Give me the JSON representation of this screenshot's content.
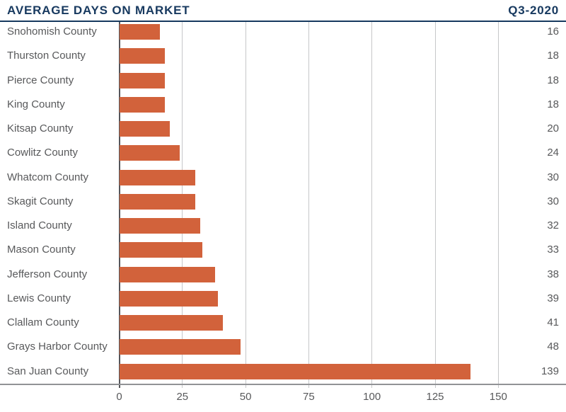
{
  "header": {
    "title": "AVERAGE DAYS ON MARKET",
    "period": "Q3-2020"
  },
  "colors": {
    "navy": "#17395F",
    "bar_orange": "#D2623B",
    "label_gray": "#58595B",
    "gridline_gray": "#C6C7C9",
    "axis_gray": "#919396",
    "zero_line_gray": "#55565A"
  },
  "chart_data": {
    "type": "bar",
    "orientation": "horizontal",
    "title": "AVERAGE DAYS ON MARKET",
    "subtitle": "Q3-2020",
    "categories": [
      "Snohomish County",
      "Thurston County",
      "Pierce County",
      "King County",
      "Kitsap County",
      "Cowlitz County",
      "Whatcom County",
      "Skagit County",
      "Island County",
      "Mason County",
      "Jefferson County",
      "Lewis County",
      "Clallam County",
      "Grays Harbor County",
      "San Juan County"
    ],
    "values": [
      16,
      18,
      18,
      18,
      20,
      24,
      30,
      30,
      32,
      33,
      38,
      39,
      41,
      48,
      139
    ],
    "value_labels": [
      "16",
      "18",
      "18",
      "18",
      "20",
      "24",
      "30",
      "30",
      "32",
      "33",
      "38",
      "39",
      "41",
      "48",
      "139"
    ],
    "xlabel": "",
    "ylabel": "",
    "xlim": [
      0,
      174
    ],
    "x_ticks": [
      0,
      25,
      50,
      75,
      100,
      125,
      150
    ],
    "grid": true,
    "legend": false,
    "value_labels_position": "right-edge"
  }
}
